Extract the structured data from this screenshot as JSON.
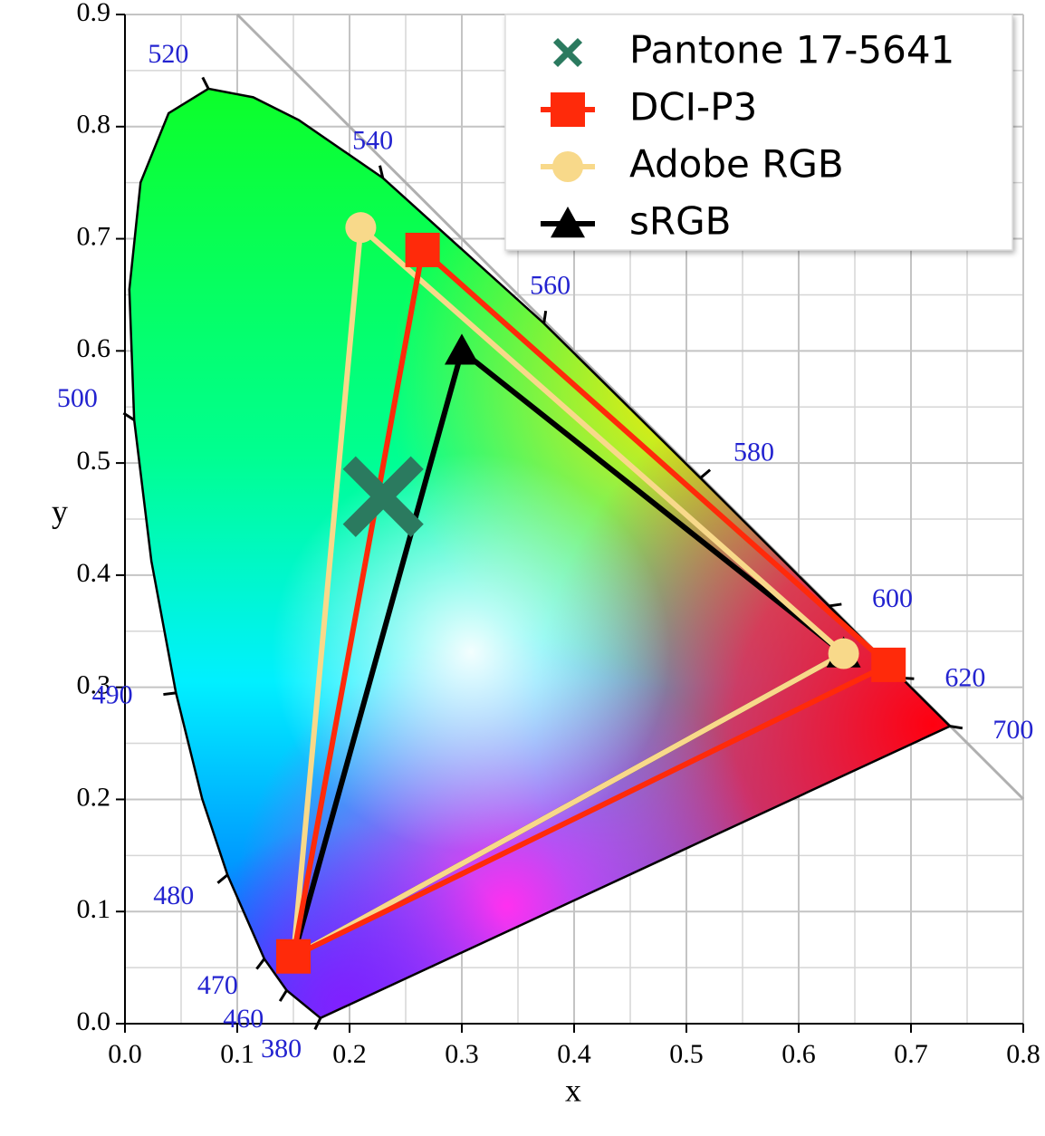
{
  "chart_data": {
    "type": "chromaticity",
    "x_label": "x",
    "y_label": "y",
    "xlim": [
      0,
      0.8
    ],
    "ylim": [
      0,
      0.9
    ],
    "xticks": [
      {
        "value": 0,
        "label": "0.0"
      },
      0.1,
      0.2,
      0.3,
      0.4,
      0.5,
      0.6,
      0.7,
      0.8
    ],
    "yticks": [
      {
        "value": 0,
        "label": "0.0"
      },
      0.1,
      0.2,
      0.3,
      0.4,
      0.5,
      0.6,
      0.7,
      0.8,
      0.9
    ],
    "x_minor_ticks": [
      0.05,
      0.15,
      0.25,
      0.35,
      0.45,
      0.55,
      0.65,
      0.75
    ],
    "y_minor_ticks": [
      0.05,
      0.15,
      0.25,
      0.35,
      0.45,
      0.55,
      0.65,
      0.75,
      0.85
    ],
    "grid": true,
    "legend_position": "upper right",
    "spectral_locus": {
      "wavelengths": [
        380,
        460,
        470,
        480,
        null,
        490,
        null,
        500,
        null,
        null,
        null,
        520,
        null,
        null,
        540,
        560,
        580,
        600,
        620,
        700
      ],
      "x": [
        0.1741,
        0.144,
        0.1241,
        0.0913,
        0.0687,
        0.0454,
        0.0235,
        0.0082,
        0.0039,
        0.0139,
        0.0389,
        0.0743,
        0.1142,
        0.1547,
        0.2296,
        0.3731,
        0.5125,
        0.627,
        0.6915,
        0.7347
      ],
      "y": [
        0.005,
        0.0297,
        0.0578,
        0.1327,
        0.2007,
        0.295,
        0.4127,
        0.5384,
        0.6548,
        0.7502,
        0.812,
        0.8338,
        0.8262,
        0.8059,
        0.7543,
        0.6245,
        0.4866,
        0.3725,
        0.3083,
        0.2653
      ]
    },
    "series": [
      {
        "name": "Pantone 17-5641",
        "color": "#2b7a5f",
        "marker": "x",
        "x": [
          0.23
        ],
        "y": [
          0.47
        ]
      },
      {
        "name": "DCI-P3",
        "color": "#ff2a0a",
        "marker": "square",
        "x": [
          0.68,
          0.265,
          0.15
        ],
        "y": [
          0.32,
          0.69,
          0.06
        ]
      },
      {
        "name": "Adobe RGB",
        "color": "#f8d98a",
        "marker": "circle",
        "x": [
          0.64,
          0.21,
          0.15
        ],
        "y": [
          0.33,
          0.71,
          0.06
        ]
      },
      {
        "name": "sRGB",
        "color": "#000000",
        "marker": "triangle",
        "x": [
          0.64,
          0.3,
          0.15
        ],
        "y": [
          0.33,
          0.6,
          0.06
        ]
      }
    ]
  }
}
